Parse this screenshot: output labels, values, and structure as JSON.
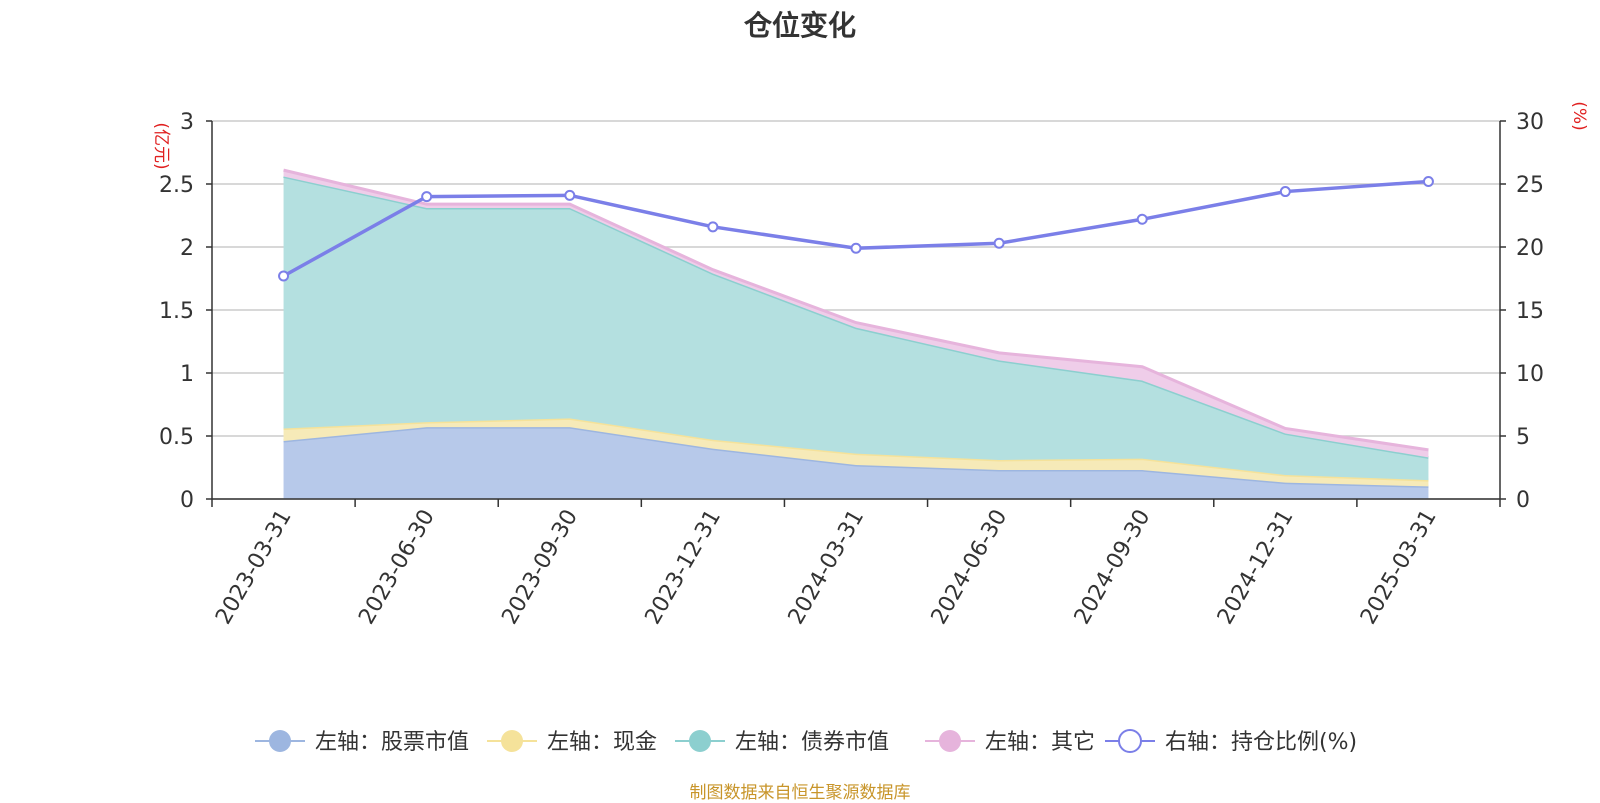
{
  "chart_data": {
    "type": "area",
    "title": "仓位变化",
    "categories": [
      "2023-03-31",
      "2023-06-30",
      "2023-09-30",
      "2023-12-31",
      "2024-03-31",
      "2024-06-30",
      "2024-09-30",
      "2024-12-31",
      "2025-03-31"
    ],
    "y_left": {
      "unit_label": "(亿元)",
      "range": [
        0,
        3
      ],
      "ticks": [
        "0",
        "0.5",
        "1",
        "1.5",
        "2",
        "2.5",
        "3"
      ]
    },
    "y_right": {
      "unit_label": "(%)",
      "range": [
        0,
        30
      ],
      "ticks": [
        "0",
        "5",
        "10",
        "15",
        "20",
        "25",
        "30"
      ]
    },
    "grid": true,
    "legend_position": "bottom",
    "stacked": true,
    "series": [
      {
        "name": "左轴：股票市值",
        "axis": "left",
        "type": "area",
        "color": "#9db6e0",
        "fill": "#b7c9ea",
        "values": [
          0.46,
          0.57,
          0.57,
          0.4,
          0.27,
          0.23,
          0.23,
          0.13,
          0.1
        ]
      },
      {
        "name": "左轴：现金",
        "axis": "left",
        "type": "area",
        "color": "#f5e29a",
        "fill": "#f6eab8",
        "values": [
          0.1,
          0.04,
          0.07,
          0.07,
          0.09,
          0.08,
          0.09,
          0.06,
          0.05
        ]
      },
      {
        "name": "左轴：债券市值",
        "axis": "left",
        "type": "area",
        "color": "#8ccfcf",
        "fill": "#b4e0e0",
        "values": [
          2.0,
          1.7,
          1.67,
          1.32,
          1.0,
          0.79,
          0.62,
          0.33,
          0.18
        ]
      },
      {
        "name": "左轴：其它",
        "axis": "left",
        "type": "area",
        "color": "#e6b4dc",
        "fill": "#efcde9",
        "values": [
          0.05,
          0.03,
          0.03,
          0.03,
          0.04,
          0.06,
          0.11,
          0.04,
          0.06
        ]
      },
      {
        "name": "右轴：持仓比例(%)",
        "axis": "right",
        "type": "line",
        "color": "#7b7fe8",
        "values": [
          17.7,
          24.0,
          24.1,
          21.6,
          19.9,
          20.3,
          22.2,
          24.4,
          25.2
        ]
      }
    ]
  },
  "footer": {
    "source": "制图数据来自恒生聚源数据库"
  }
}
